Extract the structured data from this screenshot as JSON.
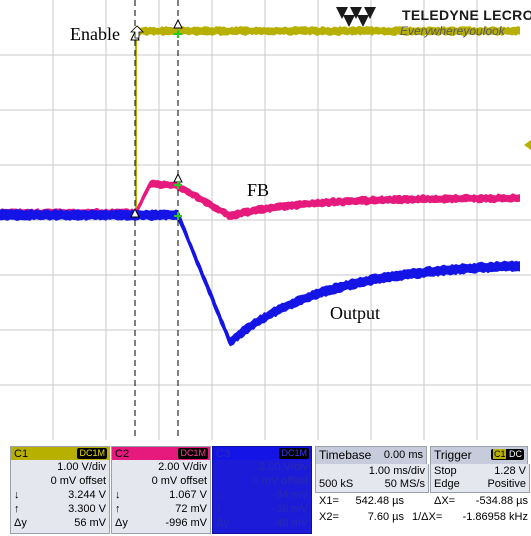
{
  "brand": {
    "name": "TELEDYNE LECROY",
    "tagline": "Everywhereyoulook"
  },
  "labels": {
    "enable": "Enable",
    "fb": "FB",
    "output": "Output"
  },
  "colors": {
    "c1": "#b8b000",
    "c2": "#e6197c",
    "c3": "#1414e6",
    "grid": "#c8c8c8",
    "panel_bg": "#e5e7ef",
    "c3_bg": "#1c1cd8"
  },
  "channels": [
    {
      "id": "C1",
      "tag": "DC1M",
      "vdiv": "1.00 V/div",
      "offset": "0 mV offset",
      "down": "3.244 V",
      "up": "3.300 V",
      "dy": "56 mV"
    },
    {
      "id": "C2",
      "tag": "DC1M",
      "vdiv": "2.00 V/div",
      "offset": "0 mV offset",
      "down": "1.067 V",
      "up": "72 mV",
      "dy": "-996 mV"
    },
    {
      "id": "C3",
      "tag": "DC1M",
      "vdiv": "2.00 V/div",
      "offset": "0 mV offset",
      "down": "-84 mV",
      "up": "-36 mV",
      "dy": "48 mV"
    }
  ],
  "symbols": {
    "down": "↓",
    "up": "↑",
    "dy": "Δy"
  },
  "timebase": {
    "title": "Timebase",
    "delay": "0.00 ms",
    "tdiv": "1.00 ms/div",
    "samples": "500 kS",
    "rate": "50 MS/s"
  },
  "trigger": {
    "title": "Trigger",
    "ch": "C1",
    "coupling": "DC",
    "mode": "Stop",
    "level": "1.28 V",
    "type": "Edge",
    "slope": "Positive"
  },
  "cursors": {
    "x1_label": "X1=",
    "x1": "542.48 µs",
    "dx_label": "ΔX=",
    "dx": "-534.88 µs",
    "x2_label": "X2=",
    "x2": "7.60 µs",
    "inv_label": "1/ΔX=",
    "inv": "-1.86958 kHz"
  }
}
